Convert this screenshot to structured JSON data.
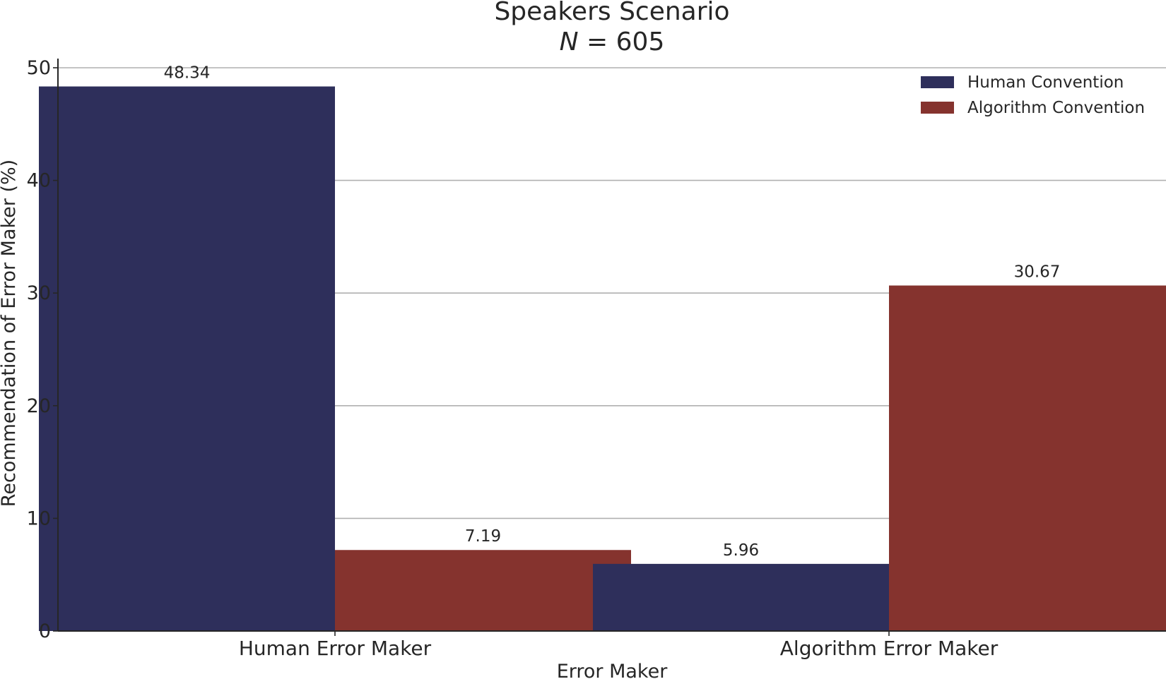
{
  "chart_data": {
    "type": "bar",
    "title": "Speakers Scenario",
    "subtitle": {
      "var": "N",
      "rest": " = 605"
    },
    "xlabel": "Error Maker",
    "ylabel": "Recommendation of Error Maker (%)",
    "categories": [
      "Human Error Maker",
      "Algorithm Error Maker"
    ],
    "series": [
      {
        "name": "Human Convention",
        "values": [
          48.34,
          5.96
        ],
        "color": "#2e2f5b"
      },
      {
        "name": "Algorithm Convention",
        "values": [
          7.19,
          30.67
        ],
        "color": "#85332e"
      }
    ],
    "value_labels": [
      [
        "48.34",
        "5.96"
      ],
      [
        "7.19",
        "30.67"
      ]
    ],
    "ylim": [
      0,
      50
    ],
    "yticks": [
      0,
      10,
      20,
      30,
      40,
      50
    ],
    "grid": "horizontal",
    "legend": "top-right"
  }
}
